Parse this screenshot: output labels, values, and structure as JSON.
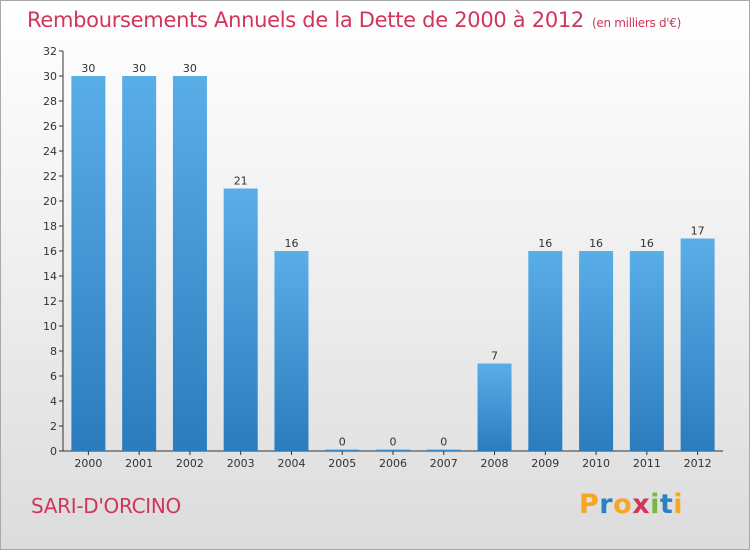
{
  "title": "Remboursements Annuels de la Dette de 2000 à 2012",
  "unit": "(en milliers d'€)",
  "town": "SARI-D'ORCINO",
  "logo": {
    "letters": [
      "P",
      "r",
      "o",
      "x",
      "i",
      "t",
      "i"
    ],
    "colors": [
      "#f5a623",
      "#2b7fc3",
      "#f5a623",
      "#d0365a",
      "#7ab648",
      "#2b7fc3",
      "#f5a623"
    ]
  },
  "colors": {
    "title": "#d0365a",
    "bar_light": "#5aaee8",
    "bar_dark": "#2b7cbd",
    "axis": "#333333"
  },
  "chart_data": {
    "type": "bar",
    "categories": [
      "2000",
      "2001",
      "2002",
      "2003",
      "2004",
      "2005",
      "2006",
      "2007",
      "2008",
      "2009",
      "2010",
      "2011",
      "2012"
    ],
    "values": [
      30,
      30,
      30,
      21,
      16,
      0,
      0,
      0,
      7,
      16,
      16,
      16,
      17
    ],
    "ylim": [
      0,
      32
    ],
    "yticks": [
      0,
      2,
      4,
      6,
      8,
      10,
      12,
      14,
      16,
      18,
      20,
      22,
      24,
      26,
      28,
      30,
      32
    ],
    "grid": false,
    "data_labels": true
  }
}
